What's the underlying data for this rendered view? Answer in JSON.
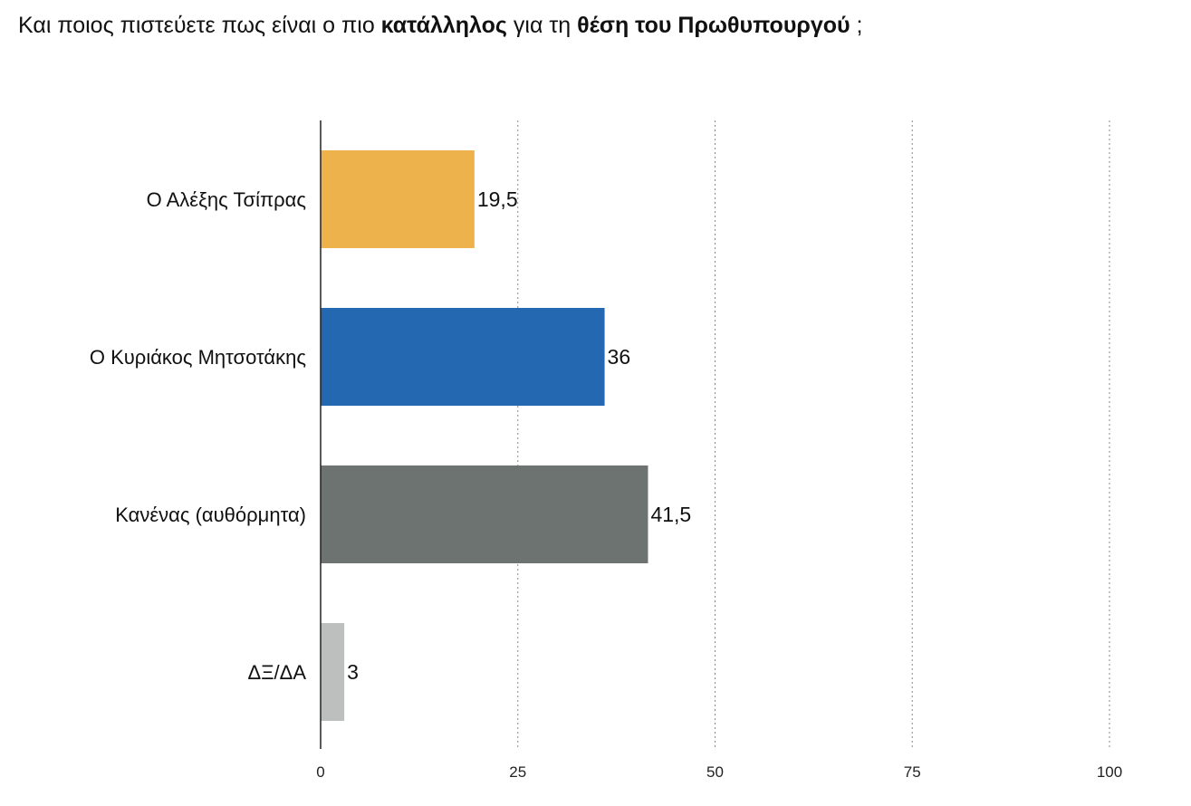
{
  "title": {
    "parts": [
      {
        "text": "Και ποιος πιστεύετε πως είναι ο πιο ",
        "bold": false
      },
      {
        "text": "κατάλληλος",
        "bold": true
      },
      {
        "text": " για τη ",
        "bold": false
      },
      {
        "text": "θέση του Πρωθυπουργού",
        "bold": true
      },
      {
        "text": " ;",
        "bold": false
      }
    ]
  },
  "chart_data": {
    "type": "bar",
    "orientation": "horizontal",
    "categories": [
      "Ο Αλέξης Τσίπρας",
      "Ο Κυριάκος Μητσοτάκης",
      "Κανένας (αυθόρμητα)",
      "ΔΞ/ΔΑ"
    ],
    "values": [
      19.5,
      36,
      41.5,
      3
    ],
    "value_labels": [
      "19,5",
      "36",
      "41,5",
      "3"
    ],
    "colors": [
      "#EEB24D",
      "#2368B1",
      "#6D7370",
      "#BDBFBE"
    ],
    "xlim": [
      0,
      100
    ],
    "xticks": [
      0,
      25,
      50,
      75,
      100
    ],
    "xtick_labels": [
      "0",
      "25",
      "50",
      "75",
      "100"
    ],
    "grid": "vertical dotted",
    "legend": "none"
  }
}
